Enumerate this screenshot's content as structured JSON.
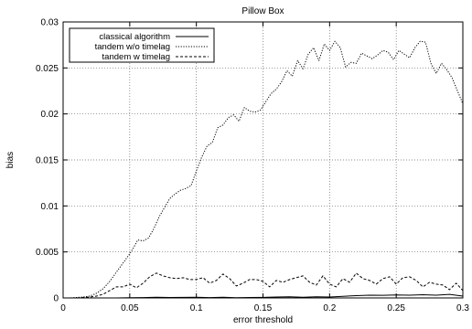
{
  "chart_data": {
    "type": "line",
    "title": "Pillow Box",
    "xlabel": "error threshold",
    "ylabel": "bias",
    "xlim": [
      0,
      0.3
    ],
    "ylim": [
      0,
      0.03
    ],
    "grid": true,
    "legend_position": "top-left",
    "x_ticks": [
      {
        "value": 0,
        "label": "0"
      },
      {
        "value": 0.05,
        "label": "0.05"
      },
      {
        "value": 0.1,
        "label": "0.1"
      },
      {
        "value": 0.15,
        "label": "0.15"
      },
      {
        "value": 0.2,
        "label": "0.2"
      },
      {
        "value": 0.25,
        "label": "0.25"
      },
      {
        "value": 0.3,
        "label": "0.3"
      }
    ],
    "y_ticks": [
      {
        "value": 0,
        "label": "0"
      },
      {
        "value": 0.005,
        "label": "0.005"
      },
      {
        "value": 0.01,
        "label": "0.01"
      },
      {
        "value": 0.015,
        "label": "0.015"
      },
      {
        "value": 0.02,
        "label": "0.02"
      },
      {
        "value": 0.025,
        "label": "0.025"
      },
      {
        "value": 0.03,
        "label": "0.03"
      }
    ],
    "series": [
      {
        "name": "classical algorithm",
        "dash": "solid",
        "points": [
          [
            0,
            0
          ],
          [
            0.01,
            0
          ],
          [
            0.02,
            0
          ],
          [
            0.03,
            0
          ],
          [
            0.04,
            0
          ],
          [
            0.05,
            2e-05
          ],
          [
            0.06,
            4e-05
          ],
          [
            0.07,
            8e-05
          ],
          [
            0.08,
            5e-05
          ],
          [
            0.09,
            6e-05
          ],
          [
            0.1,
            8e-05
          ],
          [
            0.11,
            4e-05
          ],
          [
            0.12,
            7e-05
          ],
          [
            0.13,
            3e-05
          ],
          [
            0.14,
            5e-05
          ],
          [
            0.15,
            6e-05
          ],
          [
            0.16,
            0.0001
          ],
          [
            0.17,
            0.00012
          ],
          [
            0.18,
            8e-05
          ],
          [
            0.19,
            0.00012
          ],
          [
            0.2,
            0.0001
          ],
          [
            0.21,
            0.00018
          ],
          [
            0.22,
            0.00025
          ],
          [
            0.23,
            0.0003
          ],
          [
            0.24,
            0.00028
          ],
          [
            0.25,
            0.00032
          ],
          [
            0.26,
            0.0003
          ],
          [
            0.27,
            0.00035
          ],
          [
            0.28,
            0.0003
          ],
          [
            0.29,
            0.00038
          ],
          [
            0.3,
            0.0002
          ]
        ]
      },
      {
        "name": "tandem w/o timelag",
        "dash": "dotted",
        "points": [
          [
            0,
            0
          ],
          [
            0.005,
            0
          ],
          [
            0.01,
            5e-05
          ],
          [
            0.015,
            0.0001
          ],
          [
            0.02,
            0.0002
          ],
          [
            0.025,
            0.0005
          ],
          [
            0.03,
            0.001
          ],
          [
            0.035,
            0.0018
          ],
          [
            0.04,
            0.0028
          ],
          [
            0.045,
            0.0038
          ],
          [
            0.05,
            0.0048
          ],
          [
            0.053,
            0.0055
          ],
          [
            0.056,
            0.0063
          ],
          [
            0.06,
            0.0062
          ],
          [
            0.064,
            0.0065
          ],
          [
            0.068,
            0.0075
          ],
          [
            0.072,
            0.0088
          ],
          [
            0.076,
            0.0098
          ],
          [
            0.08,
            0.0108
          ],
          [
            0.084,
            0.0113
          ],
          [
            0.088,
            0.0117
          ],
          [
            0.092,
            0.0119
          ],
          [
            0.096,
            0.0122
          ],
          [
            0.1,
            0.0138
          ],
          [
            0.104,
            0.0153
          ],
          [
            0.108,
            0.0165
          ],
          [
            0.112,
            0.0169
          ],
          [
            0.116,
            0.0185
          ],
          [
            0.12,
            0.0188
          ],
          [
            0.124,
            0.0196
          ],
          [
            0.128,
            0.0199
          ],
          [
            0.132,
            0.0192
          ],
          [
            0.136,
            0.0207
          ],
          [
            0.14,
            0.0203
          ],
          [
            0.144,
            0.0202
          ],
          [
            0.148,
            0.0204
          ],
          [
            0.152,
            0.0213
          ],
          [
            0.156,
            0.0222
          ],
          [
            0.16,
            0.0227
          ],
          [
            0.164,
            0.0235
          ],
          [
            0.168,
            0.0247
          ],
          [
            0.172,
            0.0241
          ],
          [
            0.176,
            0.0258
          ],
          [
            0.18,
            0.0249
          ],
          [
            0.184,
            0.0265
          ],
          [
            0.188,
            0.0272
          ],
          [
            0.192,
            0.0258
          ],
          [
            0.196,
            0.0276
          ],
          [
            0.2,
            0.0269
          ],
          [
            0.204,
            0.0279
          ],
          [
            0.208,
            0.0272
          ],
          [
            0.212,
            0.0251
          ],
          [
            0.216,
            0.0256
          ],
          [
            0.22,
            0.0255
          ],
          [
            0.224,
            0.0266
          ],
          [
            0.228,
            0.0263
          ],
          [
            0.232,
            0.026
          ],
          [
            0.236,
            0.0264
          ],
          [
            0.24,
            0.0269
          ],
          [
            0.244,
            0.0267
          ],
          [
            0.248,
            0.0259
          ],
          [
            0.252,
            0.0269
          ],
          [
            0.256,
            0.0265
          ],
          [
            0.26,
            0.0261
          ],
          [
            0.264,
            0.0272
          ],
          [
            0.268,
            0.0279
          ],
          [
            0.272,
            0.0278
          ],
          [
            0.276,
            0.0255
          ],
          [
            0.28,
            0.0244
          ],
          [
            0.284,
            0.0255
          ],
          [
            0.288,
            0.0248
          ],
          [
            0.292,
            0.0239
          ],
          [
            0.296,
            0.0225
          ],
          [
            0.3,
            0.0211
          ]
        ]
      },
      {
        "name": "tandem w timelag",
        "dash": "dashed",
        "points": [
          [
            0,
            0
          ],
          [
            0.01,
            0
          ],
          [
            0.02,
            0.0001
          ],
          [
            0.025,
            0.0002
          ],
          [
            0.03,
            0.0004
          ],
          [
            0.035,
            0.0008
          ],
          [
            0.04,
            0.0012
          ],
          [
            0.045,
            0.0012
          ],
          [
            0.05,
            0.0015
          ],
          [
            0.055,
            0.0011
          ],
          [
            0.06,
            0.0016
          ],
          [
            0.065,
            0.0023
          ],
          [
            0.07,
            0.0027
          ],
          [
            0.075,
            0.0024
          ],
          [
            0.08,
            0.0022
          ],
          [
            0.085,
            0.0021
          ],
          [
            0.09,
            0.0022
          ],
          [
            0.095,
            0.002
          ],
          [
            0.1,
            0.002
          ],
          [
            0.105,
            0.0022
          ],
          [
            0.11,
            0.0016
          ],
          [
            0.115,
            0.0019
          ],
          [
            0.12,
            0.0026
          ],
          [
            0.125,
            0.0021
          ],
          [
            0.13,
            0.0013
          ],
          [
            0.135,
            0.0016
          ],
          [
            0.14,
            0.002
          ],
          [
            0.145,
            0.002
          ],
          [
            0.15,
            0.0018
          ],
          [
            0.155,
            0.0012
          ],
          [
            0.16,
            0.0019
          ],
          [
            0.165,
            0.0017
          ],
          [
            0.17,
            0.002
          ],
          [
            0.175,
            0.0022
          ],
          [
            0.18,
            0.0024
          ],
          [
            0.185,
            0.0017
          ],
          [
            0.19,
            0.0014
          ],
          [
            0.195,
            0.0024
          ],
          [
            0.2,
            0.0015
          ],
          [
            0.205,
            0.0012
          ],
          [
            0.21,
            0.0021
          ],
          [
            0.215,
            0.0017
          ],
          [
            0.22,
            0.0027
          ],
          [
            0.225,
            0.0021
          ],
          [
            0.23,
            0.0019
          ],
          [
            0.235,
            0.0015
          ],
          [
            0.24,
            0.0021
          ],
          [
            0.245,
            0.0023
          ],
          [
            0.25,
            0.0015
          ],
          [
            0.255,
            0.0022
          ],
          [
            0.26,
            0.0023
          ],
          [
            0.265,
            0.0019
          ],
          [
            0.27,
            0.0012
          ],
          [
            0.275,
            0.0017
          ],
          [
            0.28,
            0.0015
          ],
          [
            0.285,
            0.0014
          ],
          [
            0.29,
            0.0009
          ],
          [
            0.295,
            0.0016
          ],
          [
            0.3,
            0.0008
          ]
        ]
      }
    ]
  }
}
